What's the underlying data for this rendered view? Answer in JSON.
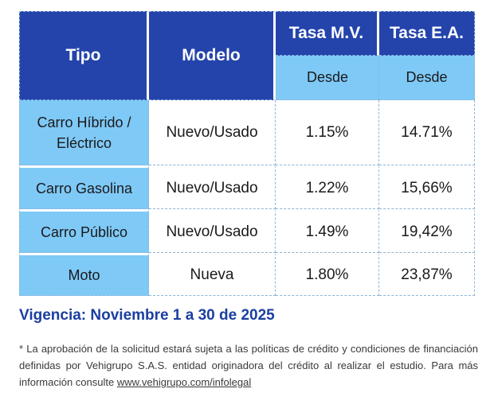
{
  "table": {
    "header": {
      "tipo": "Tipo",
      "modelo": "Modelo",
      "tasa_mv": "Tasa M.V.",
      "tasa_ea": "Tasa E.A.",
      "desde_mv": "Desde",
      "desde_ea": "Desde"
    },
    "rows": [
      {
        "tipo_line1": "Carro Híbrido /",
        "tipo_line2": "Eléctrico",
        "modelo": "Nuevo/Usado",
        "tasa_mv": "1.15%",
        "tasa_ea": "14.71%"
      },
      {
        "tipo": "Carro Gasolina",
        "modelo": "Nuevo/Usado",
        "tasa_mv": "1.22%",
        "tasa_ea": "15,66%"
      },
      {
        "tipo": "Carro Público",
        "modelo": "Nuevo/Usado",
        "tasa_mv": "1.49%",
        "tasa_ea": "19,42%"
      },
      {
        "tipo": "Moto",
        "modelo": "Nueva",
        "tasa_mv": "1.80%",
        "tasa_ea": "23,87%"
      }
    ]
  },
  "vigencia": "Vigencia: Noviembre 1 a 30 de 2025",
  "disclaimer": {
    "text": "* La aprobación de la solicitud estará sujeta a las políticas de crédito y condiciones de financiación definidas por Vehigrupo S.A.S. entidad originadora del crédito al realizar el estudio. Para más información consulte ",
    "link": "www.vehigrupo.com/infolegal"
  },
  "colors": {
    "header_dark": "#2444ac",
    "header_light": "#7fc9f7",
    "title_blue": "#1b3ea0"
  }
}
